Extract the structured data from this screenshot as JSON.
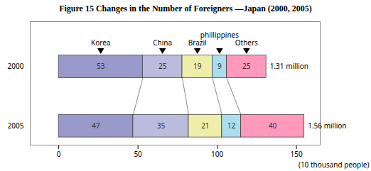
{
  "chart_data": {
    "type": "bar",
    "orientation": "horizontal",
    "stacked": true,
    "data_labels": true,
    "title": "Figure 15 Changes in the Number of Foreigners —Japan (2000, 2005)",
    "categories": [
      "2000",
      "2005"
    ],
    "series": [
      {
        "name": "Korea",
        "color": "#9999cc",
        "values": [
          53,
          47
        ]
      },
      {
        "name": "China",
        "color": "#bbbbdd",
        "values": [
          25,
          35
        ]
      },
      {
        "name": "Brazil",
        "color": "#eeeeaa",
        "values": [
          19,
          21
        ]
      },
      {
        "name": "phillippines",
        "color": "#aaddee",
        "values": [
          9,
          12
        ]
      },
      {
        "name": "Others",
        "color": "#ff99bb",
        "values": [
          25,
          40
        ]
      }
    ],
    "annotations": [
      {
        "category": "2000",
        "text": "1.31 million"
      },
      {
        "category": "2005",
        "text": "1.56 million"
      }
    ],
    "xlabel": "(10 thousand people)",
    "xlim": [
      -18,
      165
    ],
    "xticks": [
      0,
      50,
      100,
      150
    ]
  }
}
